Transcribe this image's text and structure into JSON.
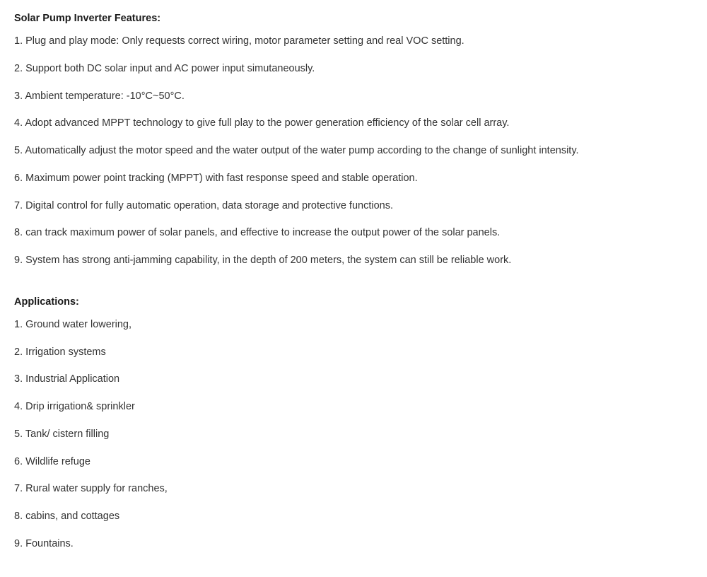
{
  "features": {
    "title": "Solar Pump Inverter Features:",
    "items": [
      "1. Plug and play mode: Only requests correct wiring, motor parameter setting and real VOC setting.",
      "2. Support both DC solar input and AC power input simutaneously.",
      "3. Ambient temperature: -10°C~50°C.",
      "4. Adopt advanced MPPT technology to give full play to the power generation efficiency of the solar cell array.",
      "5. Automatically adjust the motor speed and the water output of the water pump according to the change of sunlight intensity.",
      "6. Maximum power point tracking (MPPT) with fast response speed and stable operation.",
      "7. Digital control for fully automatic operation, data storage and protective functions.",
      "8. can track maximum power of solar panels, and effective to increase the output power of the solar panels.",
      "9. System has strong anti-jamming capability, in the depth of 200 meters, the system can still be reliable work."
    ]
  },
  "applications": {
    "title": "Applications:",
    "items": [
      "1. Ground water lowering,",
      "2. Irrigation systems",
      "3. Industrial Application",
      "4. Drip irrigation& sprinkler",
      "5. Tank/ cistern filling",
      "6. Wildlife refuge",
      "7. Rural water supply for ranches,",
      "8. cabins, and cottages",
      "9. Fountains."
    ]
  },
  "colors": {
    "text": "#333333",
    "title": "#1a1a1a",
    "background": "#ffffff"
  },
  "typography": {
    "font_family": "Arial, Helvetica, sans-serif",
    "body_fontsize": 14.5,
    "title_fontweight": "bold",
    "line_spacing": 17
  }
}
